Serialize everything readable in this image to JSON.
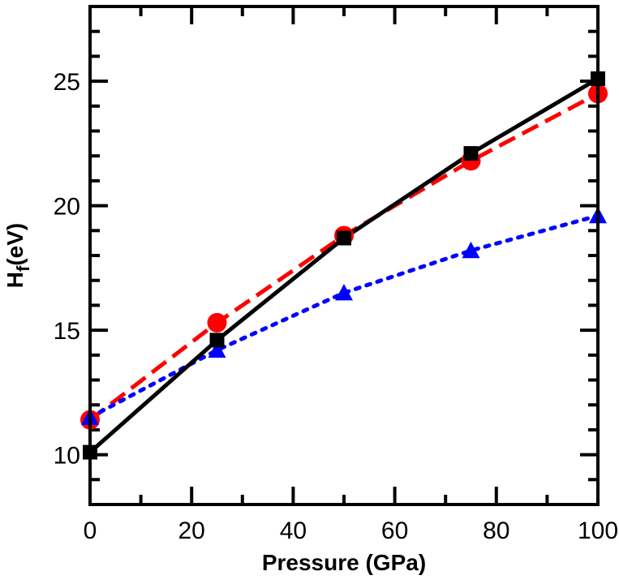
{
  "chart_data": {
    "type": "line",
    "xlabel": "Pressure (GPa)",
    "ylabel_main": "H",
    "ylabel_sub": "f",
    "ylabel_unit": "(eV)",
    "xlim": [
      0,
      100
    ],
    "ylim": [
      8,
      28
    ],
    "x_ticks": [
      0,
      20,
      40,
      60,
      80,
      100
    ],
    "x_tick_labels": [
      "0",
      "20",
      "40",
      "60",
      "80",
      "100"
    ],
    "y_ticks": [
      10,
      15,
      20,
      25
    ],
    "y_tick_labels": [
      "10",
      "15",
      "20",
      "25"
    ],
    "series": [
      {
        "name": "circles-dashed",
        "marker": "circle",
        "line_style": "dashed",
        "color": "#ff0000",
        "x": [
          0,
          25,
          50,
          75,
          100
        ],
        "y": [
          11.4,
          15.3,
          18.8,
          21.8,
          24.5
        ]
      },
      {
        "name": "triangles-dotted",
        "marker": "triangle",
        "line_style": "dotted",
        "color": "#0000ff",
        "x": [
          0,
          25,
          50,
          75,
          100
        ],
        "y": [
          11.5,
          14.2,
          16.5,
          18.2,
          19.6
        ]
      },
      {
        "name": "squares-solid",
        "marker": "square",
        "line_style": "solid",
        "color": "#000000",
        "x": [
          0,
          25,
          50,
          75,
          100
        ],
        "y": [
          10.1,
          14.6,
          18.7,
          22.1,
          25.1
        ]
      }
    ]
  }
}
